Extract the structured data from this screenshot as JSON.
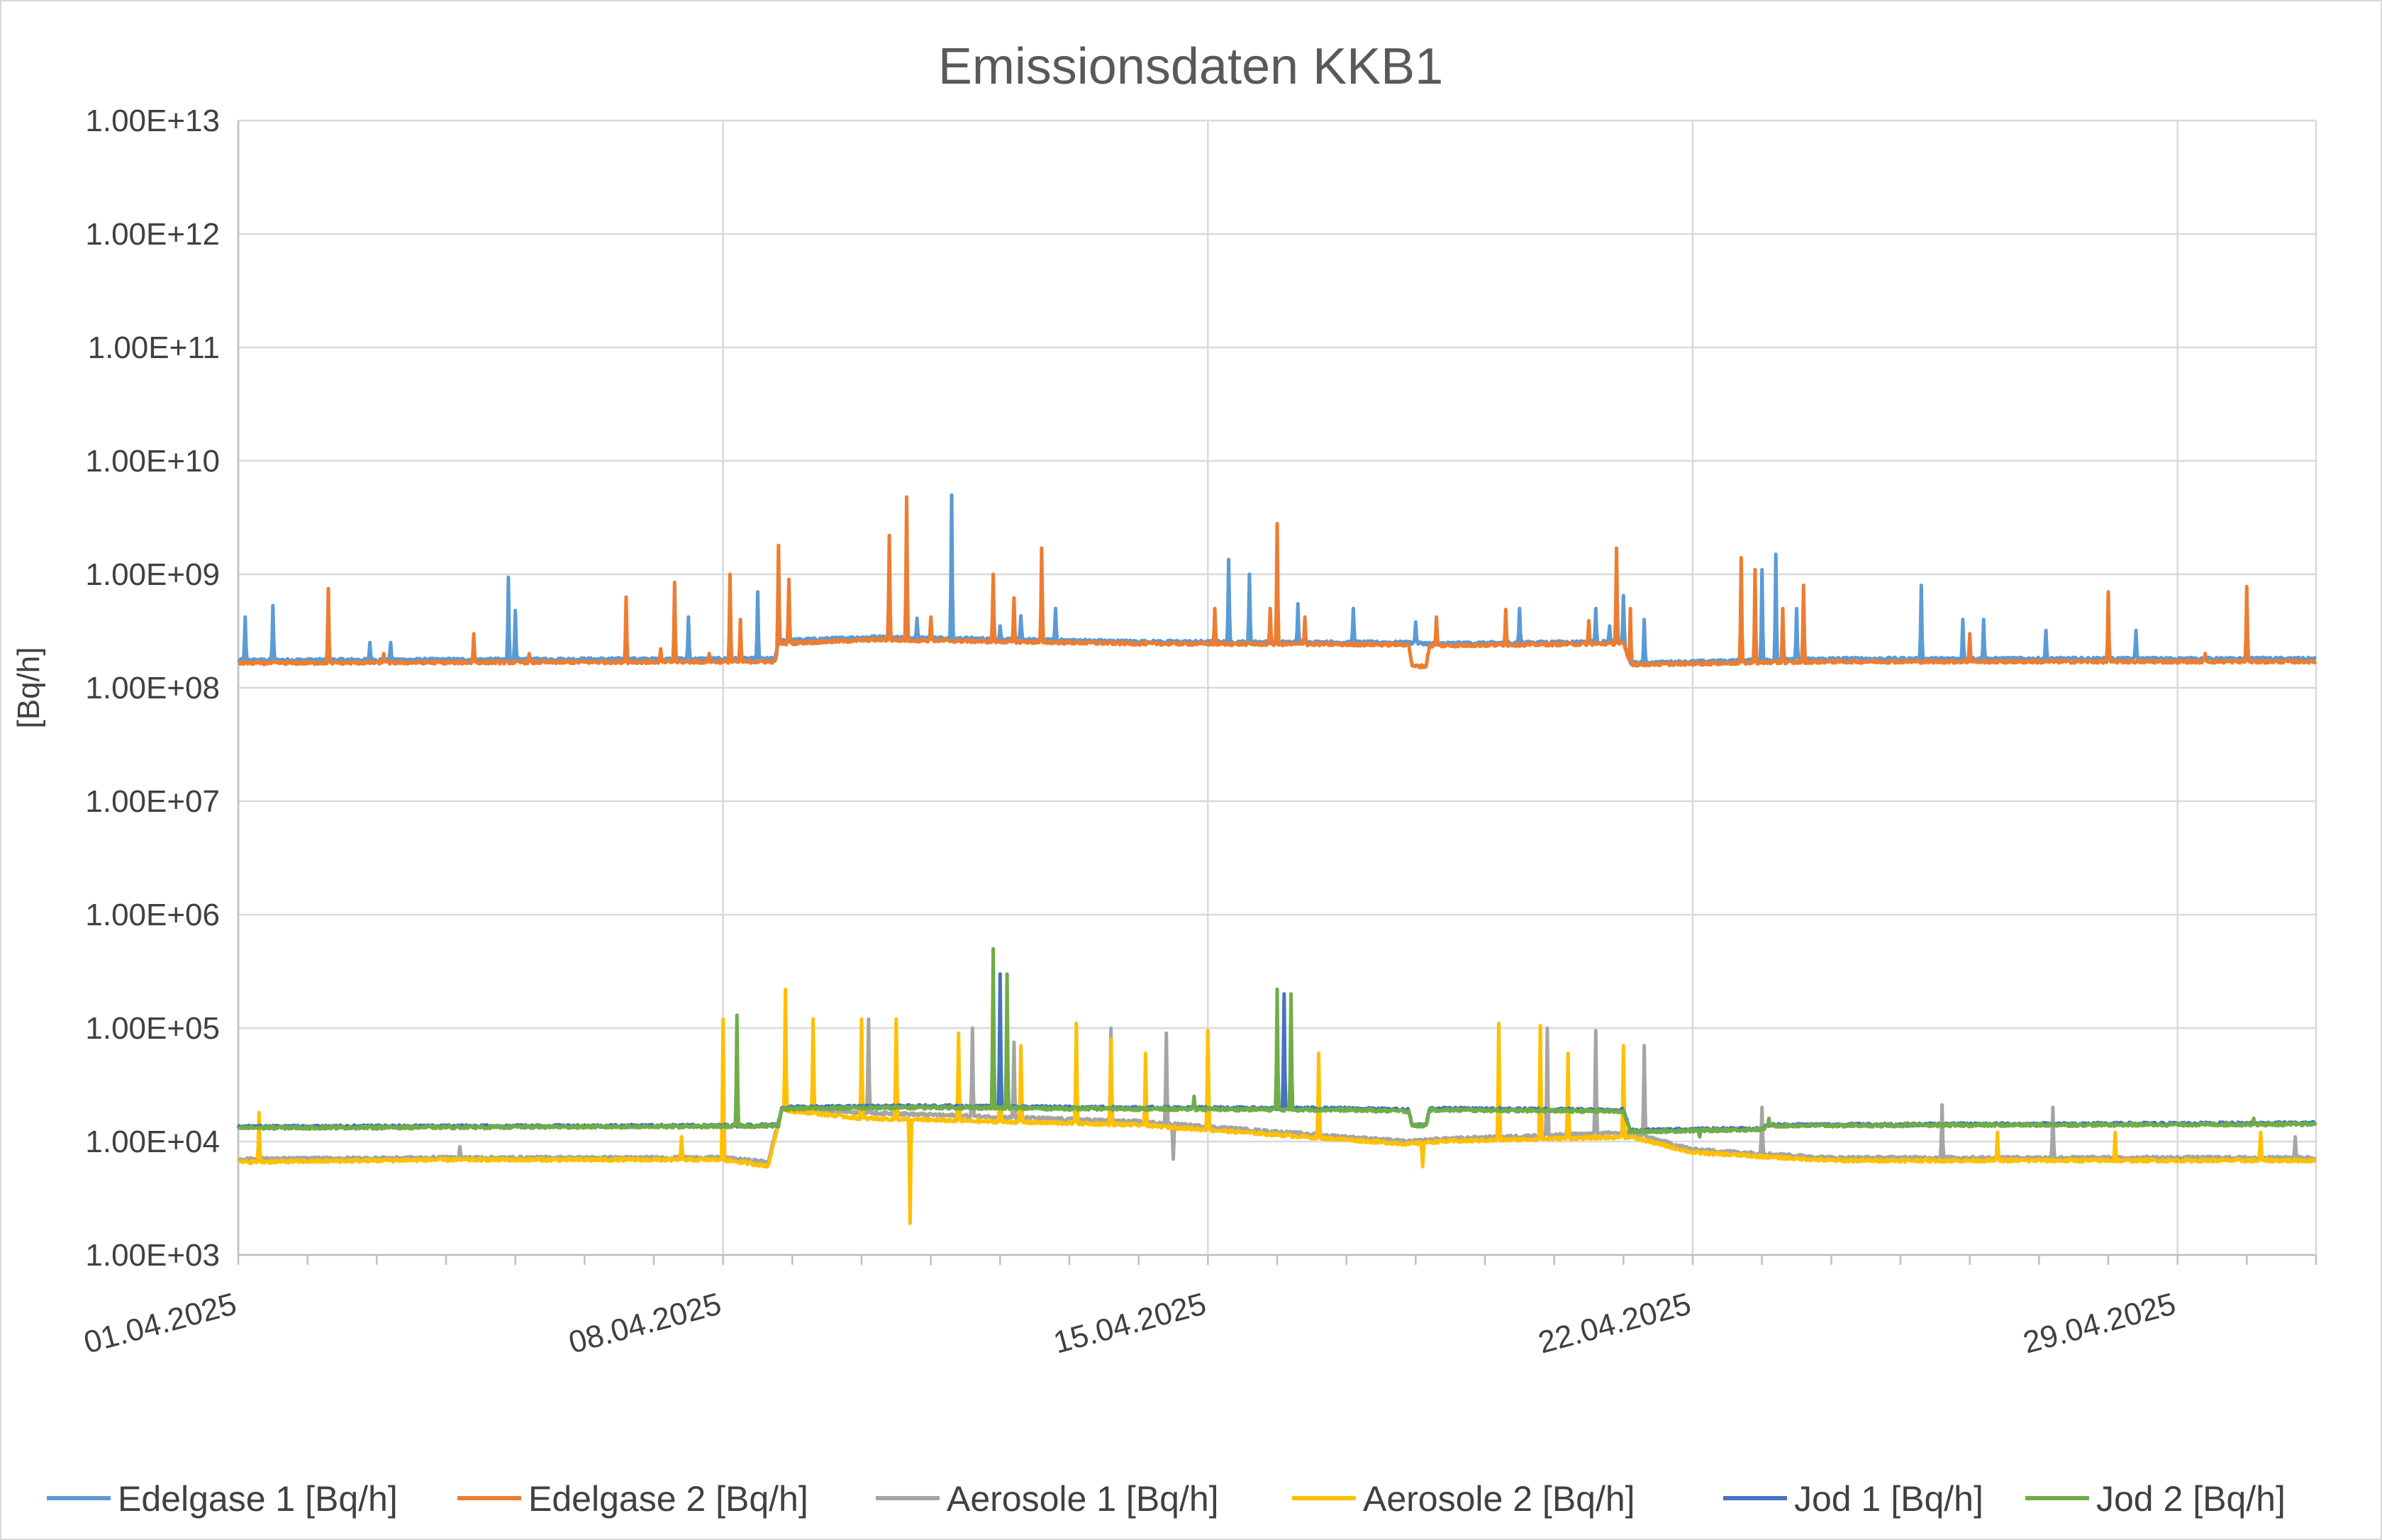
{
  "chart_data": {
    "type": "line",
    "title": "Emissionsdaten KKB1",
    "ylabel": "[Bq/h]",
    "xlabel": "",
    "yscale": "log",
    "ylim": [
      1000,
      10000000000000
    ],
    "yticks": [
      1000,
      10000,
      100000,
      1000000,
      10000000,
      100000000,
      1000000000,
      10000000000,
      100000000000,
      1000000000000,
      10000000000000
    ],
    "ytick_labels": [
      "1.00E+03",
      "1.00E+04",
      "1.00E+05",
      "1.00E+06",
      "1.00E+07",
      "1.00E+08",
      "1.00E+09",
      "1.00E+10",
      "1.00E+11",
      "1.00E+12",
      "1.00E+13"
    ],
    "xlim_days": [
      0,
      30
    ],
    "xtick_labels": [
      {
        "day": 0,
        "label": "01.04.2025"
      },
      {
        "day": 7,
        "label": "08.04.2025"
      },
      {
        "day": 14,
        "label": "15.04.2025"
      },
      {
        "day": 21,
        "label": "22.04.2025"
      },
      {
        "day": 28,
        "label": "29.04.2025"
      }
    ],
    "grid": true,
    "legend_position": "bottom",
    "series": [
      {
        "name": "Edelgase 1 [Bq/h]",
        "color": "#5b9bd5",
        "baseline": [
          [
            0,
            175000000.0
          ],
          [
            7.75,
            180000000.0
          ],
          [
            7.8,
            260000000.0
          ],
          [
            9.2,
            280000000.0
          ],
          [
            13,
            255000000.0
          ],
          [
            16.9,
            250000000.0
          ],
          [
            17.2,
            245000000.0
          ],
          [
            20,
            255000000.0
          ],
          [
            20.1,
            165000000.0
          ],
          [
            23,
            180000000.0
          ],
          [
            30,
            180000000.0
          ]
        ],
        "spikes": [
          [
            0.1,
            420000000.0
          ],
          [
            0.5,
            530000000.0
          ],
          [
            1.3,
            220000000.0
          ],
          [
            1.9,
            250000000.0
          ],
          [
            2.2,
            250000000.0
          ],
          [
            3.9,
            940000000.0
          ],
          [
            4.0,
            480000000.0
          ],
          [
            6.5,
            420000000.0
          ],
          [
            7.5,
            700000000.0
          ],
          [
            9.8,
            410000000.0
          ],
          [
            10.3,
            5000000000.0
          ],
          [
            11.0,
            350000000.0
          ],
          [
            11.3,
            430000000.0
          ],
          [
            11.8,
            500000000.0
          ],
          [
            14.3,
            1350000000.0
          ],
          [
            14.6,
            1000000000.0
          ],
          [
            15.3,
            550000000.0
          ],
          [
            16.1,
            500000000.0
          ],
          [
            17.0,
            380000000.0
          ],
          [
            18.5,
            500000000.0
          ],
          [
            19.6,
            500000000.0
          ],
          [
            19.8,
            350000000.0
          ],
          [
            20.0,
            650000000.0
          ],
          [
            20.3,
            400000000.0
          ],
          [
            22.0,
            1100000000.0
          ],
          [
            22.2,
            1500000000.0
          ],
          [
            22.5,
            500000000.0
          ],
          [
            24.3,
            800000000.0
          ],
          [
            24.9,
            400000000.0
          ],
          [
            25.2,
            400000000.0
          ],
          [
            26.1,
            320000000.0
          ],
          [
            27.4,
            320000000.0
          ],
          [
            28.8,
            180000000.0
          ]
        ]
      },
      {
        "name": "Edelgase 2 [Bq/h]",
        "color": "#ed7d31",
        "baseline": [
          [
            0,
            165000000.0
          ],
          [
            7.75,
            170000000.0
          ],
          [
            7.8,
            245000000.0
          ],
          [
            9.2,
            265000000.0
          ],
          [
            13,
            245000000.0
          ],
          [
            16.9,
            240000000.0
          ],
          [
            16.95,
            155000000.0
          ],
          [
            17.15,
            155000000.0
          ],
          [
            17.2,
            235000000.0
          ],
          [
            20,
            245000000.0
          ],
          [
            20.1,
            160000000.0
          ],
          [
            23,
            170000000.0
          ],
          [
            30,
            170000000.0
          ]
        ],
        "spikes": [
          [
            1.3,
            750000000.0
          ],
          [
            2.1,
            200000000.0
          ],
          [
            3.4,
            300000000.0
          ],
          [
            4.2,
            200000000.0
          ],
          [
            5.6,
            630000000.0
          ],
          [
            6.1,
            220000000.0
          ],
          [
            6.3,
            850000000.0
          ],
          [
            6.8,
            200000000.0
          ],
          [
            7.1,
            1000000000.0
          ],
          [
            7.25,
            400000000.0
          ],
          [
            7.8,
            1800000000.0
          ],
          [
            7.95,
            900000000.0
          ],
          [
            9.4,
            2200000000.0
          ],
          [
            9.65,
            4800000000.0
          ],
          [
            10.0,
            420000000.0
          ],
          [
            10.9,
            1000000000.0
          ],
          [
            11.2,
            620000000.0
          ],
          [
            11.6,
            1700000000.0
          ],
          [
            14.1,
            500000000.0
          ],
          [
            14.9,
            500000000.0
          ],
          [
            15.0,
            2800000000.0
          ],
          [
            15.4,
            420000000.0
          ],
          [
            17.3,
            420000000.0
          ],
          [
            18.3,
            490000000.0
          ],
          [
            19.5,
            390000000.0
          ],
          [
            19.9,
            1700000000.0
          ],
          [
            20.1,
            500000000.0
          ],
          [
            21.7,
            1400000000.0
          ],
          [
            21.9,
            1100000000.0
          ],
          [
            22.3,
            500000000.0
          ],
          [
            22.6,
            800000000.0
          ],
          [
            25.0,
            300000000.0
          ],
          [
            27.0,
            700000000.0
          ],
          [
            28.4,
            200000000.0
          ],
          [
            29.0,
            780000000.0
          ]
        ]
      },
      {
        "name": "Aerosole 1 [Bq/h]",
        "color": "#a5a5a5",
        "baseline": [
          [
            0,
            7000.0
          ],
          [
            3.0,
            7200.0
          ],
          [
            7.0,
            7200.0
          ],
          [
            7.65,
            6600.0
          ],
          [
            7.85,
            20000.0
          ],
          [
            9.0,
            18000.0
          ],
          [
            13.0,
            15000.0
          ],
          [
            16.9,
            10000.0
          ],
          [
            17.3,
            10500.0
          ],
          [
            20.1,
            12000.0
          ],
          [
            21.0,
            8500.0
          ],
          [
            23.0,
            7200.0
          ],
          [
            30,
            7200.0
          ]
        ],
        "spikes": [
          [
            3.2,
            9000.0
          ],
          [
            9.1,
            120000.0
          ],
          [
            9.5,
            100000.0
          ],
          [
            10.6,
            100000.0
          ],
          [
            11.2,
            75000.0
          ],
          [
            12.6,
            100000.0
          ],
          [
            13.4,
            90000.0
          ],
          [
            13.5,
            7000.0
          ],
          [
            14.0,
            90000.0
          ],
          [
            18.9,
            100000.0
          ],
          [
            19.6,
            95000.0
          ],
          [
            20.3,
            70000.0
          ],
          [
            22.0,
            20000.0
          ],
          [
            24.6,
            21000.0
          ],
          [
            26.2,
            20000.0
          ],
          [
            29.7,
            11000.0
          ]
        ]
      },
      {
        "name": "Aerosole 2 [Bq/h]",
        "color": "#ffc000",
        "baseline": [
          [
            0,
            6600.0
          ],
          [
            3.0,
            6900.0
          ],
          [
            7.0,
            6900.0
          ],
          [
            7.65,
            6100.0
          ],
          [
            7.85,
            19000.0
          ],
          [
            9.0,
            16000.0
          ],
          [
            13.0,
            14000.0
          ],
          [
            16.9,
            9500.0
          ],
          [
            17.3,
            10000.0
          ],
          [
            20.1,
            11000.0
          ],
          [
            21.0,
            8000.0
          ],
          [
            23.0,
            6800.0
          ],
          [
            30,
            6800.0
          ]
        ],
        "spikes": [
          [
            0.3,
            18000.0
          ],
          [
            6.4,
            11000.0
          ],
          [
            7.0,
            120000.0
          ],
          [
            7.9,
            220000.0
          ],
          [
            8.3,
            120000.0
          ],
          [
            9.0,
            120000.0
          ],
          [
            9.5,
            120000.0
          ],
          [
            9.7,
            1900.0
          ],
          [
            10.4,
            90000.0
          ],
          [
            11.0,
            45000.0
          ],
          [
            11.3,
            70000.0
          ],
          [
            12.1,
            110000.0
          ],
          [
            12.6,
            80000.0
          ],
          [
            13.1,
            60000.0
          ],
          [
            14.0,
            95000.0
          ],
          [
            15.6,
            60000.0
          ],
          [
            17.1,
            6000.0
          ],
          [
            18.2,
            110000.0
          ],
          [
            18.8,
            105000.0
          ],
          [
            19.2,
            60000.0
          ],
          [
            20.0,
            70000.0
          ],
          [
            25.4,
            12000.0
          ],
          [
            27.1,
            12000.0
          ],
          [
            29.2,
            12000.0
          ]
        ]
      },
      {
        "name": "Jod 1 [Bq/h]",
        "color": "#4472c4",
        "baseline": [
          [
            0,
            13500.0
          ],
          [
            7.0,
            13800.0
          ],
          [
            7.8,
            14000.0
          ],
          [
            7.85,
            20000.0
          ],
          [
            10.0,
            20500.0
          ],
          [
            12.0,
            20000.0
          ],
          [
            16.0,
            19500.0
          ],
          [
            16.9,
            19000.0
          ],
          [
            16.95,
            14000.0
          ],
          [
            17.15,
            14000.0
          ],
          [
            17.2,
            19500.0
          ],
          [
            20.0,
            19000.0
          ],
          [
            20.1,
            12500.0
          ],
          [
            21.0,
            12800.0
          ],
          [
            22.0,
            13000.0
          ],
          [
            22.1,
            14000.0
          ],
          [
            30,
            14500.0
          ]
        ],
        "spikes": [
          [
            11.0,
            300000.0
          ],
          [
            15.1,
            200000.0
          ]
        ]
      },
      {
        "name": "Jod 2 [Bq/h]",
        "color": "#70ad47",
        "baseline": [
          [
            0,
            13200.0
          ],
          [
            7.0,
            13600.0
          ],
          [
            7.8,
            13800.0
          ],
          [
            7.85,
            19500.0
          ],
          [
            10.0,
            20000.0
          ],
          [
            12.0,
            19500.0
          ],
          [
            16.0,
            19000.0
          ],
          [
            16.9,
            18500.0
          ],
          [
            16.95,
            13800.0
          ],
          [
            17.15,
            13800.0
          ],
          [
            17.2,
            19000.0
          ],
          [
            20.0,
            18500.0
          ],
          [
            20.1,
            12200.0
          ],
          [
            21.0,
            12500.0
          ],
          [
            22.0,
            12800.0
          ],
          [
            22.1,
            13800.0
          ],
          [
            30,
            14200.0
          ]
        ],
        "spikes": [
          [
            7.2,
            130000.0
          ],
          [
            10.9,
            500000.0
          ],
          [
            11.1,
            300000.0
          ],
          [
            15.0,
            220000.0
          ],
          [
            15.2,
            200000.0
          ],
          [
            13.8,
            25000.0
          ],
          [
            21.1,
            11000.0
          ],
          [
            22.1,
            16000.0
          ],
          [
            29.1,
            16000.0
          ]
        ]
      }
    ]
  }
}
